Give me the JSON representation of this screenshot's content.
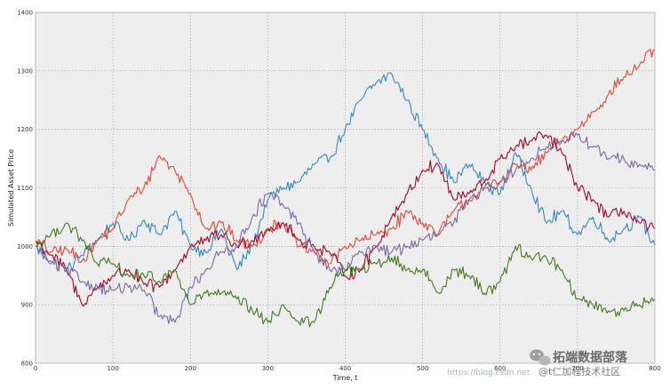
{
  "chart_data": {
    "type": "line",
    "title": "",
    "xlabel": "Time, t",
    "ylabel": "Simulated Asset Price",
    "xlim": [
      0,
      800
    ],
    "ylim": [
      800,
      1400
    ],
    "xticks": [
      0,
      100,
      200,
      300,
      400,
      500,
      600,
      700,
      800
    ],
    "yticks": [
      800,
      900,
      1000,
      1100,
      1200,
      1300,
      1400
    ],
    "grid": true,
    "grid_style": "dotted",
    "background_color": "#eeeeee",
    "x": [
      0,
      20,
      40,
      60,
      80,
      100,
      120,
      140,
      160,
      180,
      200,
      220,
      240,
      260,
      280,
      300,
      320,
      340,
      360,
      380,
      400,
      420,
      440,
      460,
      480,
      500,
      520,
      540,
      560,
      580,
      600,
      620,
      640,
      660,
      680,
      700,
      720,
      740,
      760,
      780,
      800
    ],
    "series": [
      {
        "color": "#348abd",
        "values": [
          1000,
          975,
          960,
          985,
          1010,
          1040,
          1010,
          1045,
          1020,
          1060,
          1000,
          990,
          1030,
          960,
          1000,
          1080,
          1100,
          1110,
          1140,
          1150,
          1200,
          1250,
          1280,
          1295,
          1250,
          1200,
          1150,
          1110,
          1140,
          1110,
          1090,
          1160,
          1100,
          1040,
          1060,
          1020,
          1050,
          1010,
          1030,
          1050,
          1000
        ]
      },
      {
        "color": "#e24a33",
        "values": [
          1010,
          990,
          995,
          975,
          1010,
          1030,
          1080,
          1100,
          1155,
          1130,
          1090,
          1030,
          1040,
          1010,
          1000,
          1030,
          1040,
          1000,
          990,
          970,
          1000,
          1010,
          1020,
          1030,
          1060,
          1040,
          1020,
          1060,
          1080,
          1100,
          1110,
          1140,
          1130,
          1160,
          1180,
          1200,
          1230,
          1260,
          1290,
          1310,
          1335
        ]
      },
      {
        "color": "#a60628",
        "values": [
          1010,
          985,
          960,
          900,
          930,
          950,
          960,
          935,
          930,
          960,
          1000,
          1010,
          1020,
          1000,
          1010,
          1030,
          1040,
          1010,
          1000,
          990,
          950,
          960,
          1000,
          1050,
          1090,
          1130,
          1140,
          1080,
          1090,
          1110,
          1150,
          1170,
          1180,
          1190,
          1160,
          1100,
          1080,
          1050,
          1060,
          1040,
          1030
        ]
      },
      {
        "color": "#7a68a6",
        "values": [
          1000,
          970,
          960,
          940,
          930,
          925,
          930,
          925,
          880,
          870,
          930,
          960,
          990,
          1000,
          1050,
          1090,
          1070,
          1040,
          990,
          960,
          960,
          990,
          1000,
          990,
          1000,
          1010,
          1020,
          1040,
          1080,
          1100,
          1110,
          1130,
          1150,
          1170,
          1180,
          1190,
          1170,
          1150,
          1150,
          1140,
          1130
        ]
      },
      {
        "color": "#467821",
        "values": [
          1000,
          1020,
          1040,
          1010,
          970,
          970,
          950,
          950,
          940,
          960,
          900,
          920,
          920,
          910,
          890,
          870,
          900,
          870,
          870,
          930,
          960,
          960,
          970,
          980,
          960,
          960,
          920,
          960,
          950,
          920,
          940,
          1000,
          980,
          980,
          960,
          910,
          900,
          890,
          890,
          900,
          910
        ]
      }
    ]
  },
  "watermark": {
    "badge_text": "拓端数据部落",
    "sub_text": "@t仁加程技术社区",
    "url_text": "https://blog.csdn.net"
  }
}
